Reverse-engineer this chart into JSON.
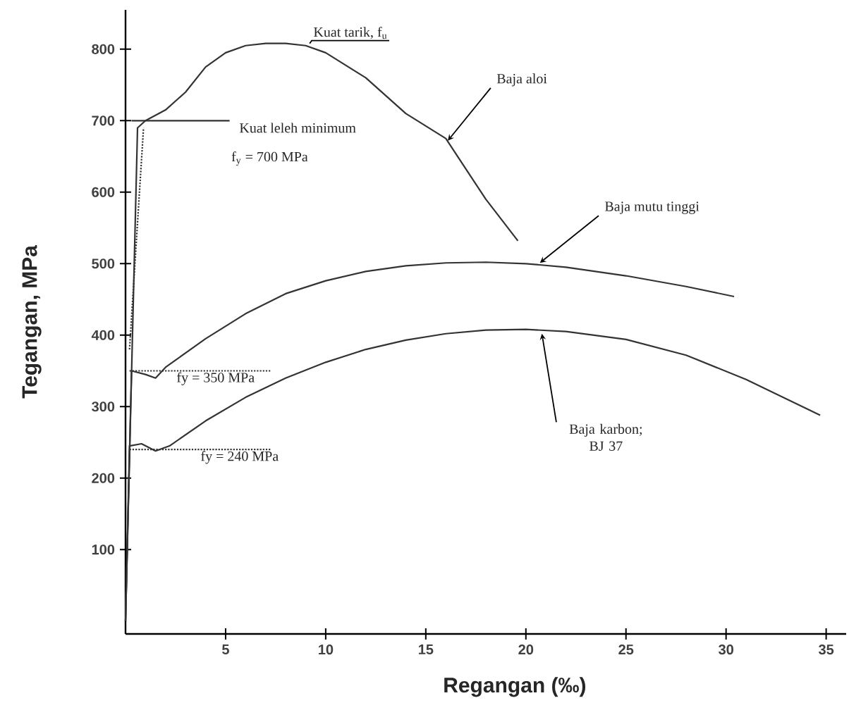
{
  "chart_data": {
    "type": "line",
    "xlabel": "Regangan (‰)",
    "ylabel": "Tegangan, MPa",
    "xlim": [
      0,
      36
    ],
    "ylim": [
      -18,
      855
    ],
    "xticks": [
      5,
      10,
      15,
      20,
      25,
      30,
      35
    ],
    "yticks": [
      100,
      200,
      300,
      400,
      500,
      600,
      700,
      800
    ],
    "marker": "none",
    "line_style": "solid",
    "series": [
      {
        "color": "#333333",
        "x": [
          0,
          0.6,
          1.0,
          2,
          3,
          4,
          5,
          6,
          7,
          8,
          9,
          10,
          12,
          14,
          16,
          18,
          19.6
        ],
        "values": [
          0,
          690,
          700,
          715,
          740,
          775,
          795,
          805,
          808,
          808,
          805,
          795,
          760,
          710,
          675,
          590,
          532
        ]
      },
      {
        "color": "#333333",
        "x": [
          0,
          0.3,
          1,
          1.5,
          2,
          4,
          6,
          8,
          10,
          12,
          14,
          16,
          18,
          20,
          22,
          25,
          28,
          30.4
        ],
        "values": [
          0,
          350,
          345,
          340,
          355,
          395,
          430,
          458,
          476,
          489,
          497,
          501,
          502,
          500,
          495,
          483,
          468,
          454
        ]
      },
      {
        "color": "#333333",
        "x": [
          0,
          0.2,
          0.8,
          1.5,
          2.2,
          4,
          6,
          8,
          10,
          12,
          14,
          16,
          18,
          20,
          22,
          25,
          28,
          31,
          34.7
        ],
        "values": [
          0,
          245,
          248,
          238,
          245,
          280,
          313,
          340,
          362,
          380,
          393,
          402,
          407,
          408,
          405,
          394,
          372,
          338,
          288
        ]
      },
      {
        "color": "#333333",
        "x": [
          0.3,
          5.2
        ],
        "values": [
          700,
          700
        ]
      },
      {
        "color": "#333333",
        "x": [
          0.2,
          7.3
        ],
        "values": [
          350,
          350
        ],
        "line_style": "dotted"
      },
      {
        "color": "#333333",
        "x": [
          0.2,
          7.3
        ],
        "values": [
          240,
          240
        ],
        "line_style": "dotted"
      },
      {
        "color": "#333333",
        "x": [
          0.2,
          0.9
        ],
        "values": [
          380,
          690
        ],
        "line_style": "dotted"
      }
    ],
    "annotations": [
      {
        "text": "Kuat tarik, f$_{u}$",
        "x": 9.2,
        "y": 808
      },
      "Kuat leleh minimum",
      "f$_{y}$ = 700 MPa",
      {
        "text": "Baja aloi",
        "x": 16.1,
        "y": 672
      },
      {
        "text": "Baja mutu tinggi",
        "x": 20.7,
        "y": 501
      },
      {
        "text": "Baja karbon; BJ 37",
        "x": 20.8,
        "y": 402
      },
      "fy = 350 MPa",
      "fy = 240 MPa"
    ]
  }
}
